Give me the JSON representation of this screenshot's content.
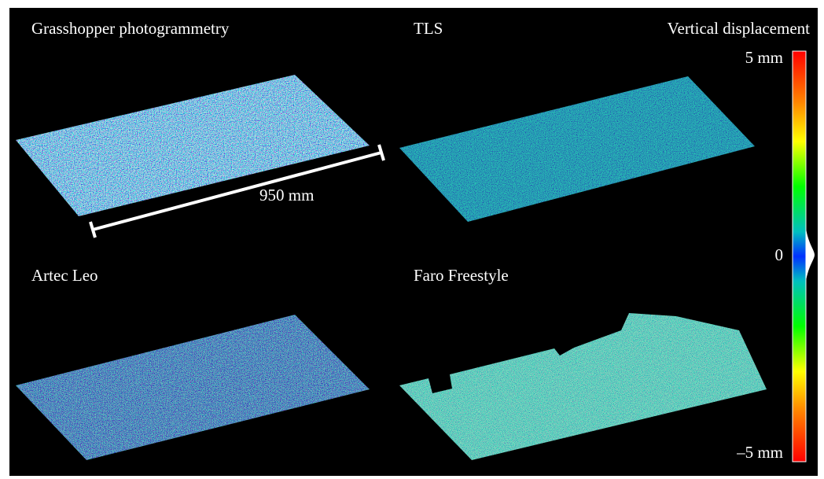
{
  "panels": [
    {
      "label": "Grasshopper photogrammetry",
      "scale_bar": "950 mm"
    },
    {
      "label": "TLS"
    },
    {
      "label": "Artec Leo"
    },
    {
      "label": "Faro Freestyle"
    }
  ],
  "colorbar": {
    "title": "Vertical displacement",
    "range": [
      -5,
      5
    ],
    "ticks": [
      {
        "value": 5,
        "label": "5 mm"
      },
      {
        "value": 0,
        "label": "0"
      },
      {
        "value": -5,
        "label": "–5 mm"
      }
    ]
  }
}
